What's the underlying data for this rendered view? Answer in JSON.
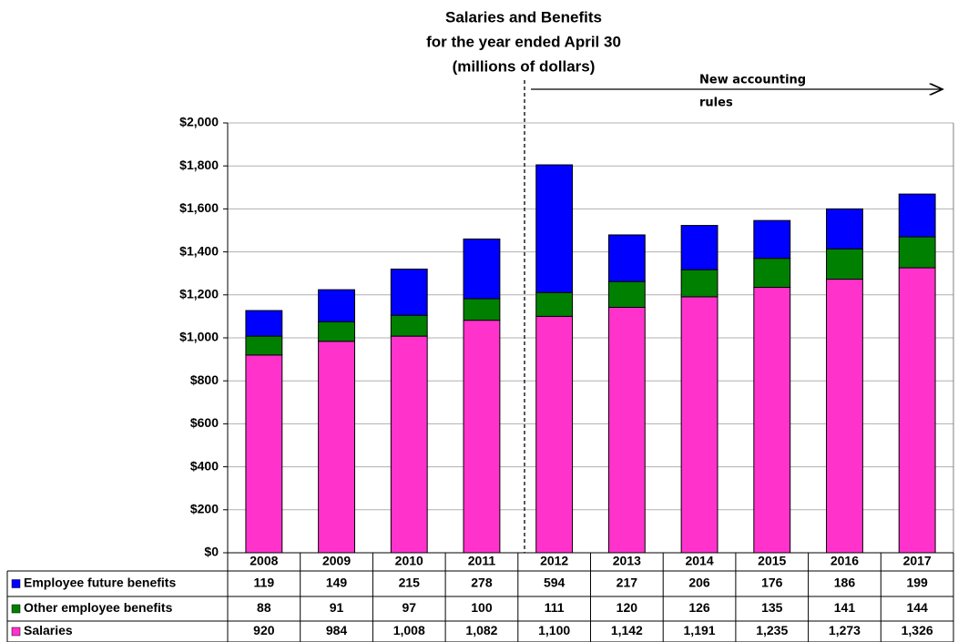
{
  "chart_data": {
    "type": "stacked_bar",
    "title": [
      "Salaries and Benefits",
      "for the year ended April 30",
      "(millions of dollars)"
    ],
    "annotation": [
      "New accounting",
      "rules"
    ],
    "categories": [
      "2008",
      "2009",
      "2010",
      "2011",
      "2012",
      "2013",
      "2014",
      "2015",
      "2016",
      "2017"
    ],
    "series": [
      {
        "name": "Employee future benefits",
        "color": "#0000ff",
        "values": [
          119,
          149,
          215,
          278,
          594,
          217,
          206,
          176,
          186,
          199
        ],
        "value_labels": [
          "119",
          "149",
          "215",
          "278",
          "594",
          "217",
          "206",
          "176",
          "186",
          "199"
        ]
      },
      {
        "name": "Other employee benefits",
        "color": "#008000",
        "values": [
          88,
          91,
          97,
          100,
          111,
          120,
          126,
          135,
          141,
          144
        ],
        "value_labels": [
          "88",
          "91",
          "97",
          "100",
          "111",
          "120",
          "126",
          "135",
          "141",
          "144"
        ]
      },
      {
        "name": "Salaries",
        "color": "#ff33cc",
        "values": [
          920,
          984,
          1008,
          1082,
          1100,
          1142,
          1191,
          1235,
          1273,
          1326
        ],
        "value_labels": [
          "920",
          "984",
          "1,008",
          "1,082",
          "1,100",
          "1,142",
          "1,191",
          "1,235",
          "1,273",
          "1,326"
        ]
      }
    ],
    "ylim": [
      0,
      2000
    ],
    "yticks": [
      {
        "value": 0,
        "label": "$0"
      },
      {
        "value": 200,
        "label": "$200"
      },
      {
        "value": 400,
        "label": "$400"
      },
      {
        "value": 600,
        "label": "$600"
      },
      {
        "value": 800,
        "label": "$800"
      },
      {
        "value": 1000,
        "label": "$1,000"
      },
      {
        "value": 1200,
        "label": "$1,200"
      },
      {
        "value": 1400,
        "label": "$1,400"
      },
      {
        "value": 1600,
        "label": "$1,600"
      },
      {
        "value": 1800,
        "label": "$1,800"
      },
      {
        "value": 2000,
        "label": "$2,000"
      }
    ],
    "grid": true
  }
}
